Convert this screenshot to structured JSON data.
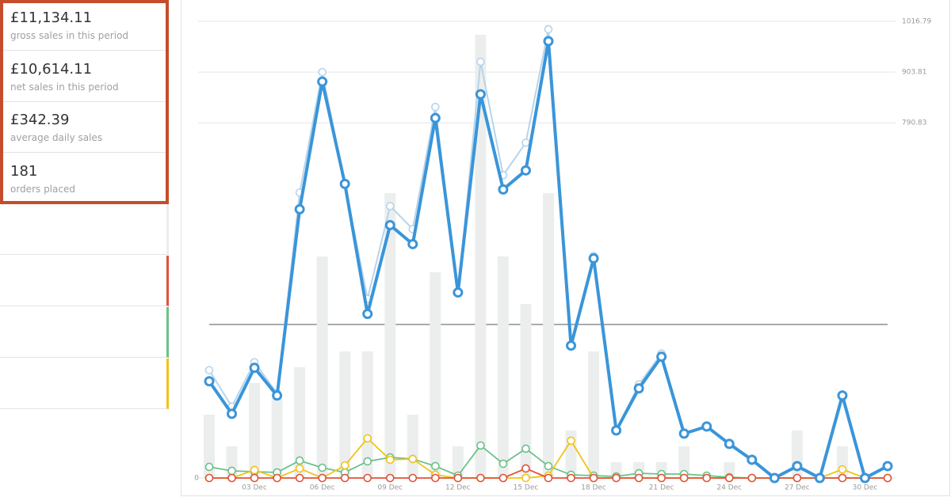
{
  "stats": [
    {
      "value": "£11,134.11",
      "label": "gross sales in this period"
    },
    {
      "value": "£10,614.11",
      "label": "net sales in this period"
    },
    {
      "value": "£342.39",
      "label": "average daily sales"
    },
    {
      "value": "181",
      "label": "orders placed"
    }
  ],
  "chart_data": {
    "type": "line",
    "categories": [
      null,
      null,
      "03 Dec",
      null,
      null,
      "06 Dec",
      null,
      null,
      "09 Dec",
      null,
      null,
      "12 Dec",
      null,
      null,
      "15 Dec",
      null,
      null,
      "18 Dec",
      null,
      null,
      "21 Dec",
      null,
      null,
      "24 Dec",
      null,
      null,
      "27 Dec",
      null,
      null,
      "30 Dec",
      null
    ],
    "ylim": [
      0,
      1016.79
    ],
    "yticks": [
      0,
      790.83,
      903.81,
      1016.79
    ],
    "y2lim": [
      0,
      28.85
    ],
    "grid": true,
    "series": [
      {
        "type": "bar",
        "axis": "y2",
        "color": "#eceeee",
        "values": [
          4,
          2,
          6,
          5,
          7,
          14,
          8,
          8,
          18,
          4,
          13,
          2,
          28,
          14,
          11,
          18,
          3,
          8,
          1,
          1,
          1,
          2,
          0,
          1,
          0,
          0,
          3,
          0,
          2,
          0,
          0
        ]
      },
      {
        "color": "#6cc18a",
        "values": [
          24.7,
          15.9,
          14.1,
          12.4,
          38.8,
          22.9,
          12.4,
          37.1,
          45.9,
          42.4,
          26.5,
          5.3,
          72.4,
          31.8,
          65.3,
          26.5,
          7.1,
          5.3,
          3.5,
          10.6,
          8.8,
          8.8,
          5.3,
          1.8,
          0,
          0,
          0,
          0,
          0,
          0,
          0
        ]
      },
      {
        "color": "#f0c419",
        "values": [
          0,
          0,
          17.7,
          0,
          21.2,
          0,
          28.2,
          88.3,
          40.6,
          42.4,
          7.1,
          0,
          0,
          0,
          0,
          5.3,
          83,
          0,
          0,
          0,
          0,
          0,
          0,
          0,
          0,
          0,
          0,
          0,
          19.4,
          0,
          0
        ]
      },
      {
        "color": "#e0533a",
        "values": [
          0,
          0,
          0,
          0,
          0,
          0,
          0,
          0,
          0,
          0,
          0,
          0,
          0,
          0,
          21.2,
          0,
          0,
          0,
          0,
          0,
          0,
          0,
          0,
          0,
          0,
          0,
          0,
          0,
          0,
          0,
          0
        ]
      },
      {
        "color": "#b7d4ea",
        "values": [
          240.1,
          158.9,
          257.7,
          188.9,
          635.5,
          903.8,
          654.9,
          399,
          605.5,
          554.3,
          826.2,
          413.1,
          926.8,
          674.3,
          746.7,
          999.2,
          294.8,
          494.3,
          105.9,
          208.3,
          277.2,
          98.9,
          114.7,
          75.9,
          40.6,
          0,
          26.5,
          0,
          183.6,
          0,
          26.5
        ]
      },
      {
        "color": "#3a95d9",
        "values": [
          215.4,
          143,
          245.4,
          183.6,
          598.4,
          882.7,
          654.9,
          365.4,
          563.1,
          520.8,
          801.5,
          413.1,
          854.4,
          642.6,
          684.9,
          972.7,
          294.8,
          489,
          105.9,
          199.5,
          270.1,
          98.9,
          114.7,
          75.9,
          40.6,
          0,
          26.5,
          0,
          183.6,
          0,
          26.5
        ]
      }
    ]
  }
}
